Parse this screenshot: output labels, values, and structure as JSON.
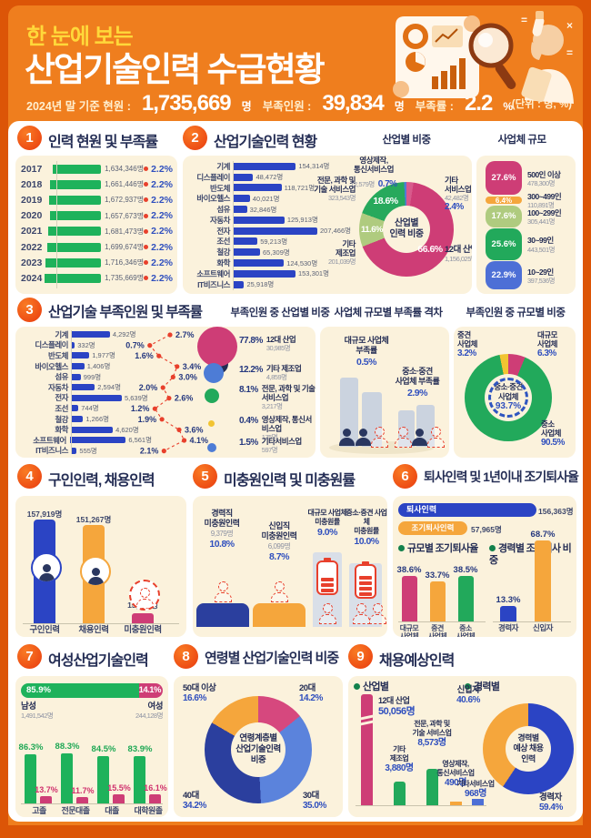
{
  "header": {
    "pretitle": "한 눈에 보는",
    "title": "산업기술인력 수급현황",
    "stat1_label": "2024년 말 기준 현원 :",
    "stat1_value": "1,735,669",
    "stat1_unit": "명",
    "stat2_label": "부족인원 :",
    "stat2_value": "39,834",
    "stat2_unit": "명",
    "stat3_label": "부족률 :",
    "stat3_value": "2.2",
    "stat3_unit": "%",
    "unit_note": "(단위 : 명, %)"
  },
  "sections": {
    "s1": {
      "no": "1",
      "title": "인력 현원 및 부족률"
    },
    "s2": {
      "no": "2",
      "title": "산업기술인력 현황",
      "sub1": "산업별 비중",
      "sub2": "사업체 규모"
    },
    "s3": {
      "no": "3",
      "title": "산업기술 부족인원 및 부족률",
      "sub1": "부족인원 중 산업별 비중",
      "sub2": "사업체 규모별 부족률 격차",
      "sub3": "부족인원 중 규모별 비중"
    },
    "s4": {
      "no": "4",
      "title": "구인인력, 채용인력"
    },
    "s5": {
      "no": "5",
      "title": "미충원인력 및 미충원률"
    },
    "s6": {
      "no": "6",
      "title": "퇴사인력 및 1년이내 조기퇴사율",
      "sub1": "규모별 조기퇴사율",
      "sub2": "경력별 조기퇴사 비중"
    },
    "s7": {
      "no": "7",
      "title": "여성산업기술인력"
    },
    "s8": {
      "no": "8",
      "title": "연령별 산업기술인력 비중"
    },
    "s9": {
      "no": "9",
      "title": "채용예상인력",
      "sub1": "산업별",
      "sub2": "경력별"
    }
  },
  "chart_data": [
    {
      "id": "headcount_by_year",
      "type": "bar",
      "title": "인력 현원 및 부족률",
      "years": [
        {
          "y": "2017",
          "label": "1,634,346명",
          "v": 1634346,
          "pct": "2.2%"
        },
        {
          "y": "2018",
          "label": "1,661,446명",
          "v": 1661446,
          "pct": "2.2%"
        },
        {
          "y": "2019",
          "label": "1,672,937명",
          "v": 1672937,
          "pct": "2.2%"
        },
        {
          "y": "2020",
          "label": "1,657,673명",
          "v": 1657673,
          "pct": "2.2%"
        },
        {
          "y": "2021",
          "label": "1,681,473명",
          "v": 1681473,
          "pct": "2.2%"
        },
        {
          "y": "2022",
          "label": "1,699,674명",
          "v": 1699674,
          "pct": "2.2%"
        },
        {
          "y": "2023",
          "label": "1,716,346명",
          "v": 1716346,
          "pct": "2.2%"
        },
        {
          "y": "2024",
          "label": "1,735,669명",
          "v": 1735669,
          "pct": "2.2%"
        }
      ]
    },
    {
      "id": "industry_headcount",
      "type": "bar",
      "title": "산업기술인력 현황",
      "items": [
        {
          "name": "기계",
          "label": "154,314명",
          "v": 154314
        },
        {
          "name": "디스플레이",
          "label": "48,472명",
          "v": 48472
        },
        {
          "name": "반도체",
          "label": "118,721명",
          "v": 118721
        },
        {
          "name": "바이오헬스",
          "label": "40,021명",
          "v": 40021
        },
        {
          "name": "섬유",
          "label": "32,846명",
          "v": 32846
        },
        {
          "name": "자동차",
          "label": "125,913명",
          "v": 125913
        },
        {
          "name": "전자",
          "label": "207,466명",
          "v": 207466
        },
        {
          "name": "조선",
          "label": "59,213명",
          "v": 59213
        },
        {
          "name": "철강",
          "label": "65,309명",
          "v": 65309
        },
        {
          "name": "화학",
          "label": "124,530명",
          "v": 124530
        },
        {
          "name": "소프트웨어",
          "label": "153,301명",
          "v": 153301
        },
        {
          "name": "IT비즈니스",
          "label": "25,918명",
          "v": 25918
        }
      ]
    },
    {
      "id": "industry_share",
      "type": "pie",
      "title": "산업별 비중",
      "center": [
        "산업별",
        "인력 비중"
      ],
      "segments": [
        {
          "n1": "기타",
          "n2": "서비스업",
          "value": "42,482명",
          "pct": "2.4%",
          "v": 2.4,
          "color": "#D85A8C"
        },
        {
          "n1": "12대 산업",
          "n2": "",
          "value": "1,156,025명",
          "pct": "66.6%",
          "v": 66.6,
          "color": "#CE3D76"
        },
        {
          "n1": "기타",
          "n2": "제조업",
          "value": "201,039명",
          "pct": "11.6%",
          "v": 11.6,
          "color": "#AFCB7F"
        },
        {
          "n1": "전문, 과학 및",
          "n2": "기술 서비스업",
          "value": "323,543명",
          "pct": "18.6%",
          "v": 18.6,
          "color": "#27A95C"
        },
        {
          "n1": "영상제작,",
          "n2": "통신서비스업",
          "value": "12,579명",
          "pct": "0.7%",
          "v": 0.7,
          "color": "#4D7CD6"
        }
      ]
    },
    {
      "id": "company_size",
      "type": "stack",
      "title": "사업체 규모",
      "items": [
        {
          "name": "500인 이상",
          "pct": "27.6%",
          "v": 27.6,
          "value": "478,300명",
          "color": "#CE3D76"
        },
        {
          "name": "300~499인",
          "pct": "6.4%",
          "v": 6.4,
          "value": "110,891명",
          "color": "#F5A63C"
        },
        {
          "name": "100~299인",
          "pct": "17.6%",
          "v": 17.6,
          "value": "305,441명",
          "color": "#AFCB7F"
        },
        {
          "name": "30~99인",
          "pct": "25.6%",
          "v": 25.6,
          "value": "443,501명",
          "color": "#22A95B"
        },
        {
          "name": "10~29인",
          "pct": "22.9%",
          "v": 22.9,
          "value": "397,536명",
          "color": "#4D6FD6"
        }
      ]
    },
    {
      "id": "shortage_by_industry",
      "type": "bar+line",
      "title": "산업기술 부족인원 및 부족률",
      "items": [
        {
          "name": "기계",
          "label": "4,292명",
          "v": 4292,
          "pct": "2.7%",
          "pv": 2.7
        },
        {
          "name": "디스플레이",
          "label": "332명",
          "v": 332,
          "pct": "0.7%",
          "pv": 0.7
        },
        {
          "name": "반도체",
          "label": "1,977명",
          "v": 1977,
          "pct": "1.6%",
          "pv": 1.6
        },
        {
          "name": "바이오헬스",
          "label": "1,406명",
          "v": 1406,
          "pct": "3.4%",
          "pv": 3.4
        },
        {
          "name": "섬유",
          "label": "999명",
          "v": 999,
          "pct": "3.0%",
          "pv": 3.0
        },
        {
          "name": "자동차",
          "label": "2,594명",
          "v": 2594,
          "pct": "2.0%",
          "pv": 2.0
        },
        {
          "name": "전자",
          "label": "5,639명",
          "v": 5639,
          "pct": "2.6%",
          "pv": 2.6
        },
        {
          "name": "조선",
          "label": "744명",
          "v": 744,
          "pct": "1.2%",
          "pv": 1.2
        },
        {
          "name": "철강",
          "label": "1,266명",
          "v": 1266,
          "pct": "1.9%",
          "pv": 1.9
        },
        {
          "name": "화학",
          "label": "4,620명",
          "v": 4620,
          "pct": "3.6%",
          "pv": 3.6
        },
        {
          "name": "소프트웨어",
          "label": "6,561명",
          "v": 6561,
          "pct": "4.1%",
          "pv": 4.1
        },
        {
          "name": "IT비즈니스",
          "label": "555명",
          "v": 555,
          "pct": "2.1%",
          "pv": 2.1
        }
      ]
    },
    {
      "id": "shortage_share",
      "type": "bubble",
      "title": "부족인원 중 산업별 비중",
      "items": [
        {
          "name": "12대 산업",
          "pct": "77.8%",
          "value": "30,985명",
          "color": "#CE3D76"
        },
        {
          "name": "기타 제조업",
          "pct": "12.2%",
          "value": "4,859명",
          "color": "#4D7CD6"
        },
        {
          "name": "전문, 과학 및 기술 서비스업",
          "pct": "8.1%",
          "value": "3,217명",
          "color": "#22A95B"
        },
        {
          "name": "영상제작, 통신서비스업",
          "pct": "0.4%",
          "value": "175명",
          "color": "#F2C431"
        },
        {
          "name": "기타서비스업",
          "pct": "1.5%",
          "value": "597명",
          "color": "#4D7CD6"
        }
      ]
    },
    {
      "id": "size_gap",
      "type": "compare",
      "title": "사업체 규모별 부족률 격차",
      "items": [
        {
          "l1": "대규모 사업체",
          "l2": "부족률",
          "pct": "0.5%"
        },
        {
          "l1": "중소·중견",
          "l2": "사업체 부족률",
          "pct": "2.9%"
        }
      ]
    },
    {
      "id": "shortage_by_size",
      "type": "pie",
      "title": "부족인원 중 규모별 비중",
      "center": {
        "l1": "중소·중견",
        "l2": "사업체",
        "pct": "93.7%"
      },
      "segments": [
        {
          "n1": "대규모",
          "n2": "사업체",
          "pct": "6.3%",
          "v": 6.3,
          "color": "#CE3D76"
        },
        {
          "n1": "중소",
          "n2": "사업체",
          "pct": "90.5%",
          "v": 90.5,
          "color": "#22A95B"
        },
        {
          "n1": "중견",
          "n2": "사업체",
          "pct": "3.2%",
          "v": 3.2,
          "color": "#F2C431"
        }
      ]
    },
    {
      "id": "hiring",
      "type": "bar",
      "title": "구인인력, 채용인력",
      "items": [
        {
          "name": "구인인력",
          "label": "157,919명",
          "v": 157919
        },
        {
          "name": "채용인력",
          "label": "151,267명",
          "v": 151267
        },
        {
          "name": "미충원인력",
          "label": "15,618명",
          "v": 15618
        }
      ]
    },
    {
      "id": "unfilled",
      "type": "compare",
      "title": "미충원인력 및 미충원률",
      "career": {
        "l1": "경력직",
        "l2": "미충원인력",
        "value": "9,379명",
        "pct": "10.8%"
      },
      "newbie": {
        "l1": "신입직",
        "l2": "미충원인력",
        "value": "6,099명",
        "pct": "8.7%"
      },
      "large": {
        "l1": "대규모 사업체",
        "l2": "미충원률",
        "pct": "9.0%"
      },
      "sme": {
        "l1": "중소·중견 사업체",
        "l2": "미충원률",
        "pct": "10.0%"
      }
    },
    {
      "id": "turnover",
      "type": "bar",
      "title": "퇴사인력 및 1년이내 조기퇴사율",
      "total": {
        "label": "퇴사인력",
        "value": "156,363명"
      },
      "early": {
        "label": "조기퇴사인력",
        "value": "57,965명"
      },
      "by_size": [
        {
          "n1": "대규모",
          "n2": "사업체",
          "pct": "38.6%",
          "v": 38.6,
          "color": "#CE3D76"
        },
        {
          "n1": "중견",
          "n2": "사업체",
          "pct": "33.7%",
          "v": 33.7,
          "color": "#F5A63C"
        },
        {
          "n1": "중소",
          "n2": "사업체",
          "pct": "38.5%",
          "v": 38.5,
          "color": "#22A95B"
        }
      ],
      "by_career": [
        {
          "name": "경력자",
          "pct": "13.3%",
          "v": 13.3,
          "color": "#2B44C4"
        },
        {
          "name": "신입자",
          "pct": "68.7%",
          "v": 68.7,
          "color": "#F5A63C"
        }
      ]
    },
    {
      "id": "female",
      "type": "bar",
      "title": "여성산업기술인력",
      "male": {
        "name": "남성",
        "pct": "85.9%",
        "v": 85.9,
        "value": "1,491,542명"
      },
      "female": {
        "name": "여성",
        "pct": "14.1%",
        "v": 14.1,
        "value": "244,128명"
      },
      "groups": [
        {
          "name": "고졸",
          "m": "86.3%",
          "mv": 86.3,
          "f": "13.7%",
          "fv": 13.7
        },
        {
          "name": "전문대졸",
          "m": "88.3%",
          "mv": 88.3,
          "f": "11.7%",
          "fv": 11.7
        },
        {
          "name": "대졸",
          "m": "84.5%",
          "mv": 84.5,
          "f": "15.5%",
          "fv": 15.5
        },
        {
          "name": "대학원졸",
          "m": "83.9%",
          "mv": 83.9,
          "f": "16.1%",
          "fv": 16.1
        }
      ]
    },
    {
      "id": "age_share",
      "type": "pie",
      "title": "연령별 산업기술인력 비중",
      "center": [
        "연령계층별",
        "산업기술인력",
        "비중"
      ],
      "segments": [
        {
          "name": "20대",
          "pct": "14.2%",
          "v": 14.2,
          "color": "#D6487E"
        },
        {
          "name": "30대",
          "pct": "35.0%",
          "v": 35.0,
          "color": "#5B83DC"
        },
        {
          "name": "40대",
          "pct": "34.2%",
          "v": 34.2,
          "color": "#2B3F9E"
        },
        {
          "name": "50대 이상",
          "pct": "16.6%",
          "v": 16.6,
          "color": "#F5A63C"
        }
      ]
    },
    {
      "id": "expected_hiring",
      "type": "bar+pie",
      "title": "채용예상인력",
      "industries": [
        {
          "l1": "12대 산업",
          "l2": "",
          "value": "50,056명"
        },
        {
          "l1": "기타",
          "l2": "제조업",
          "value": "3,880명"
        },
        {
          "l1": "전문, 과학 및",
          "l2": "기술 서비스업",
          "value": "8,573명"
        },
        {
          "l1": "영상제작,",
          "l2": "통신서비스업",
          "value": "490명"
        },
        {
          "l1": "기타서비스업",
          "l2": "",
          "value": "968명"
        }
      ],
      "career": {
        "center": [
          "경력별",
          "예상 채용",
          "인력"
        ],
        "segments": [
          {
            "name": "경력자",
            "pct": "59.4%",
            "v": 59.4,
            "color": "#2B44C4"
          },
          {
            "name": "신입자",
            "pct": "40.6%",
            "v": 40.6,
            "color": "#F5A63C"
          }
        ]
      }
    }
  ]
}
